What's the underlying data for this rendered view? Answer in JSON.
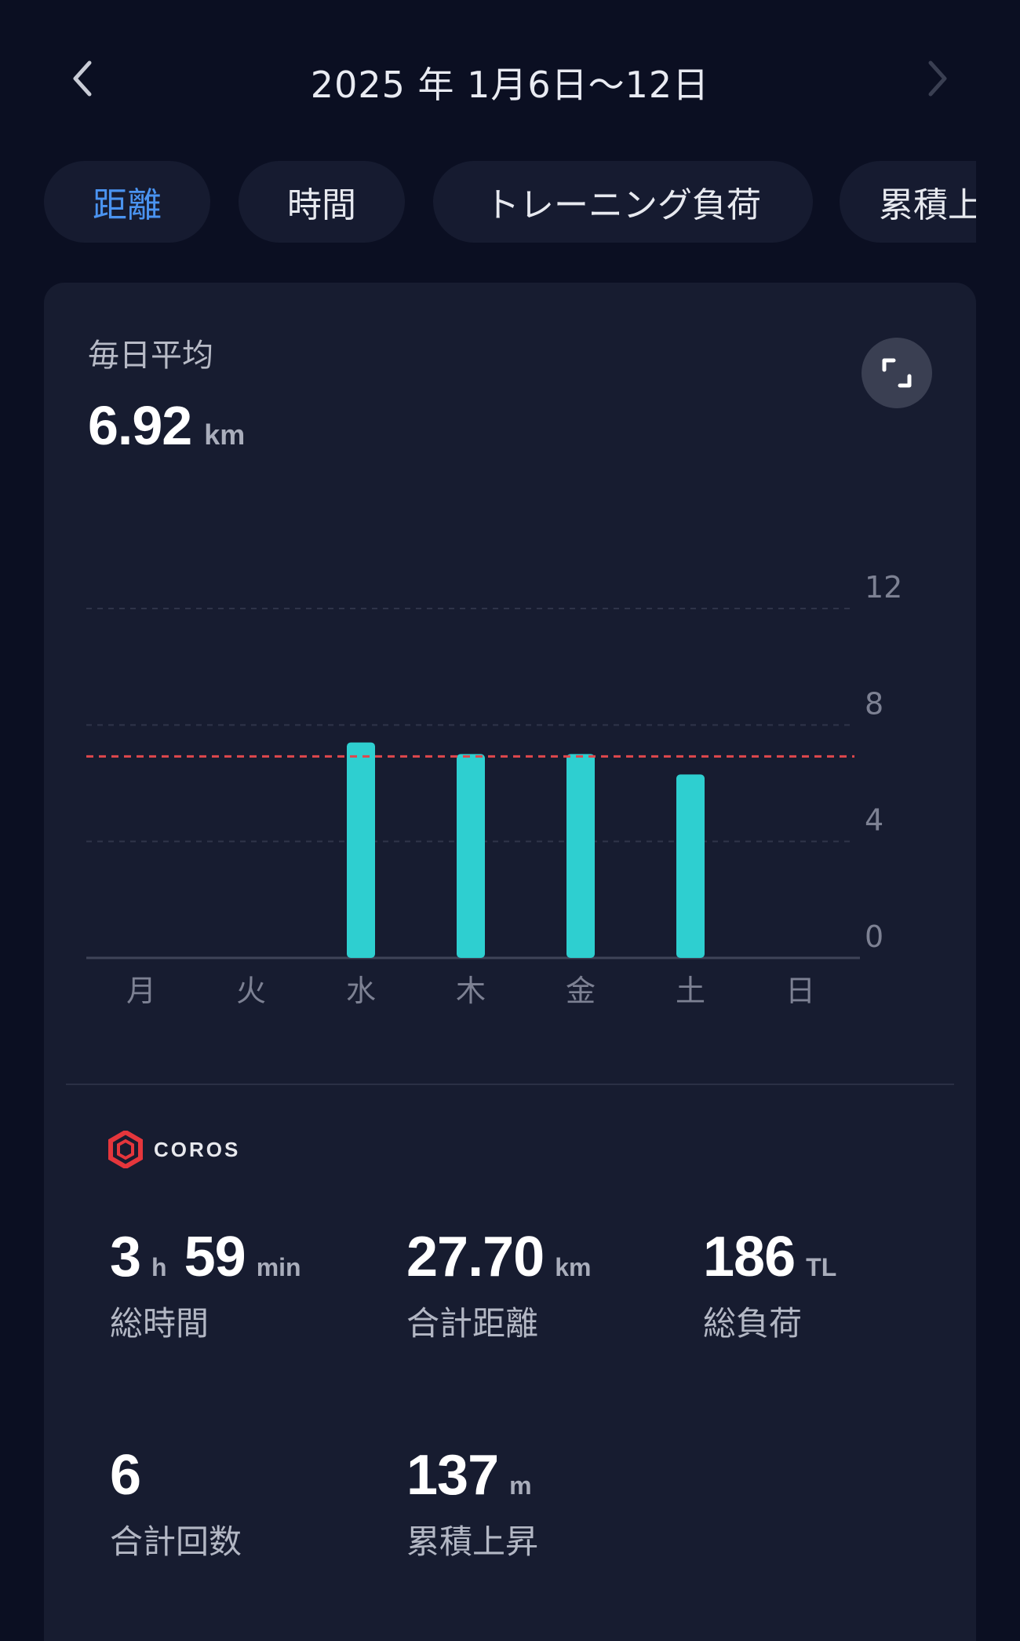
{
  "header": {
    "date_range": "2025 年 1月6日～12日"
  },
  "tabs": [
    {
      "label": "距離",
      "active": true
    },
    {
      "label": "時間",
      "active": false
    },
    {
      "label": "トレーニング負荷",
      "active": false
    },
    {
      "label": "累積上",
      "active": false
    }
  ],
  "summary": {
    "avg_label": "毎日平均",
    "avg_value": "6.92",
    "avg_unit": "km"
  },
  "chart_data": {
    "type": "bar",
    "categories": [
      "月",
      "火",
      "水",
      "木",
      "金",
      "土",
      "日"
    ],
    "values": [
      0,
      0,
      7.4,
      7.0,
      7.0,
      6.3,
      0
    ],
    "average": 6.92,
    "y_ticks": [
      "12",
      "8",
      "4",
      "0"
    ],
    "ylim": [
      0,
      12
    ],
    "grid": true,
    "bar_color": "#2ecfd0",
    "avg_line_color": "#e0474c"
  },
  "brand": {
    "name": "COROS",
    "logo_color": "#e5363c"
  },
  "stats": {
    "total_time": {
      "hours": "3",
      "hours_unit": "h",
      "minutes": "59",
      "minutes_unit": "min",
      "label": "総時間"
    },
    "total_distance": {
      "value": "27.70",
      "unit": "km",
      "label": "合計距離"
    },
    "total_load": {
      "value": "186",
      "unit": "TL",
      "label": "総負荷"
    },
    "total_count": {
      "value": "6",
      "label": "合計回数"
    },
    "total_ascent": {
      "value": "137",
      "unit": "m",
      "label": "累積上昇"
    }
  }
}
